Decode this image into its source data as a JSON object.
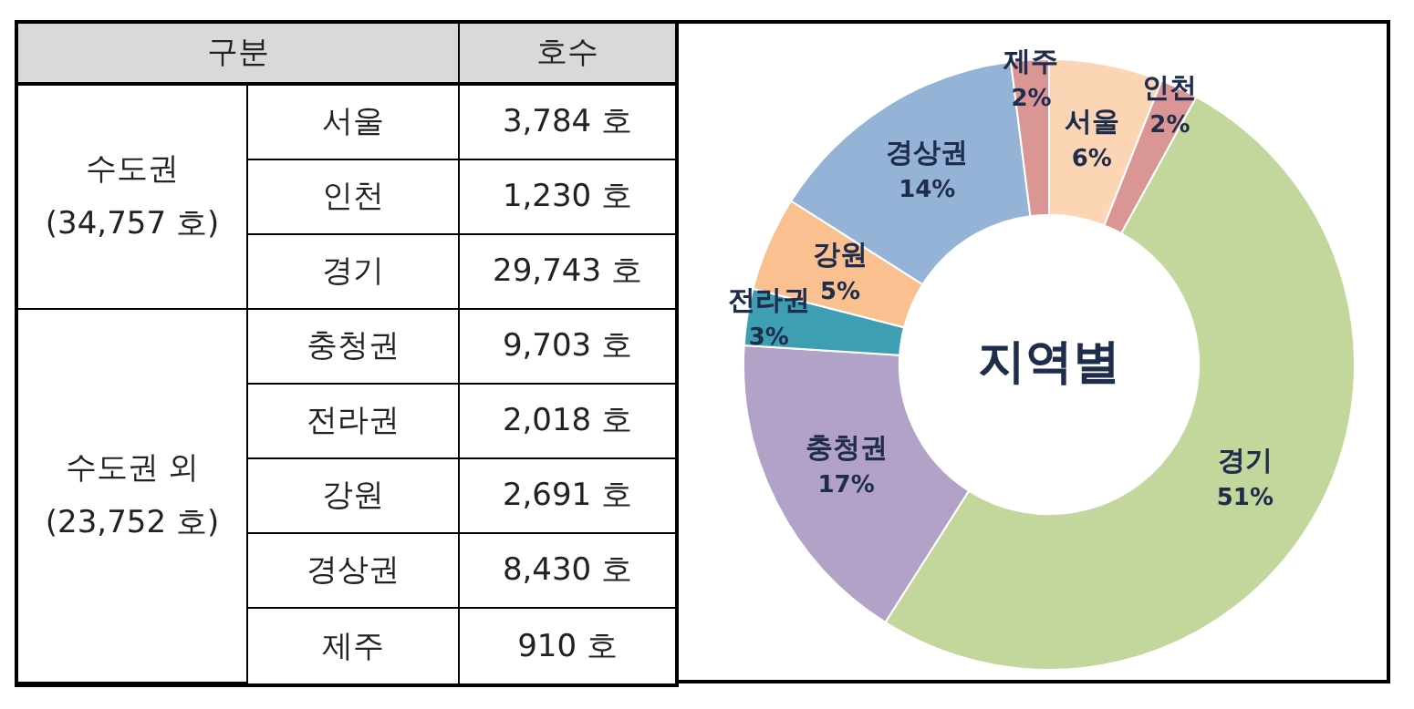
{
  "chart_data": [
    {
      "type": "other",
      "annotations": [
        "구분",
        "호수",
        "수도권\n(34,757 호)",
        "수도권 외\n(23,752 호)",
        "서울",
        "3,784 호",
        "인천",
        "1,230 호",
        "경기",
        "29,743 호",
        "충청권",
        "9,703 호",
        "전라권",
        "2,018 호",
        "강원",
        "2,691 호",
        "경상권",
        "8,430 호",
        "제주",
        "910 호"
      ]
    },
    {
      "type": "donut",
      "title": "지역별",
      "categories": [
        "서울",
        "인천",
        "경기",
        "충청권",
        "전라권",
        "강원",
        "경상권",
        "제주"
      ],
      "values": [
        6,
        2,
        51,
        17,
        3,
        5,
        14,
        2
      ],
      "value_labels": [
        "6%",
        "2%",
        "51%",
        "17%",
        "3%",
        "5%",
        "14%",
        "2%"
      ],
      "colors": [
        "#fcd5b5",
        "#d99694",
        "#c3d69b",
        "#b3a2c7",
        "#3e9fb3",
        "#fac08f",
        "#95b3d7",
        "#d99694"
      ]
    }
  ]
}
